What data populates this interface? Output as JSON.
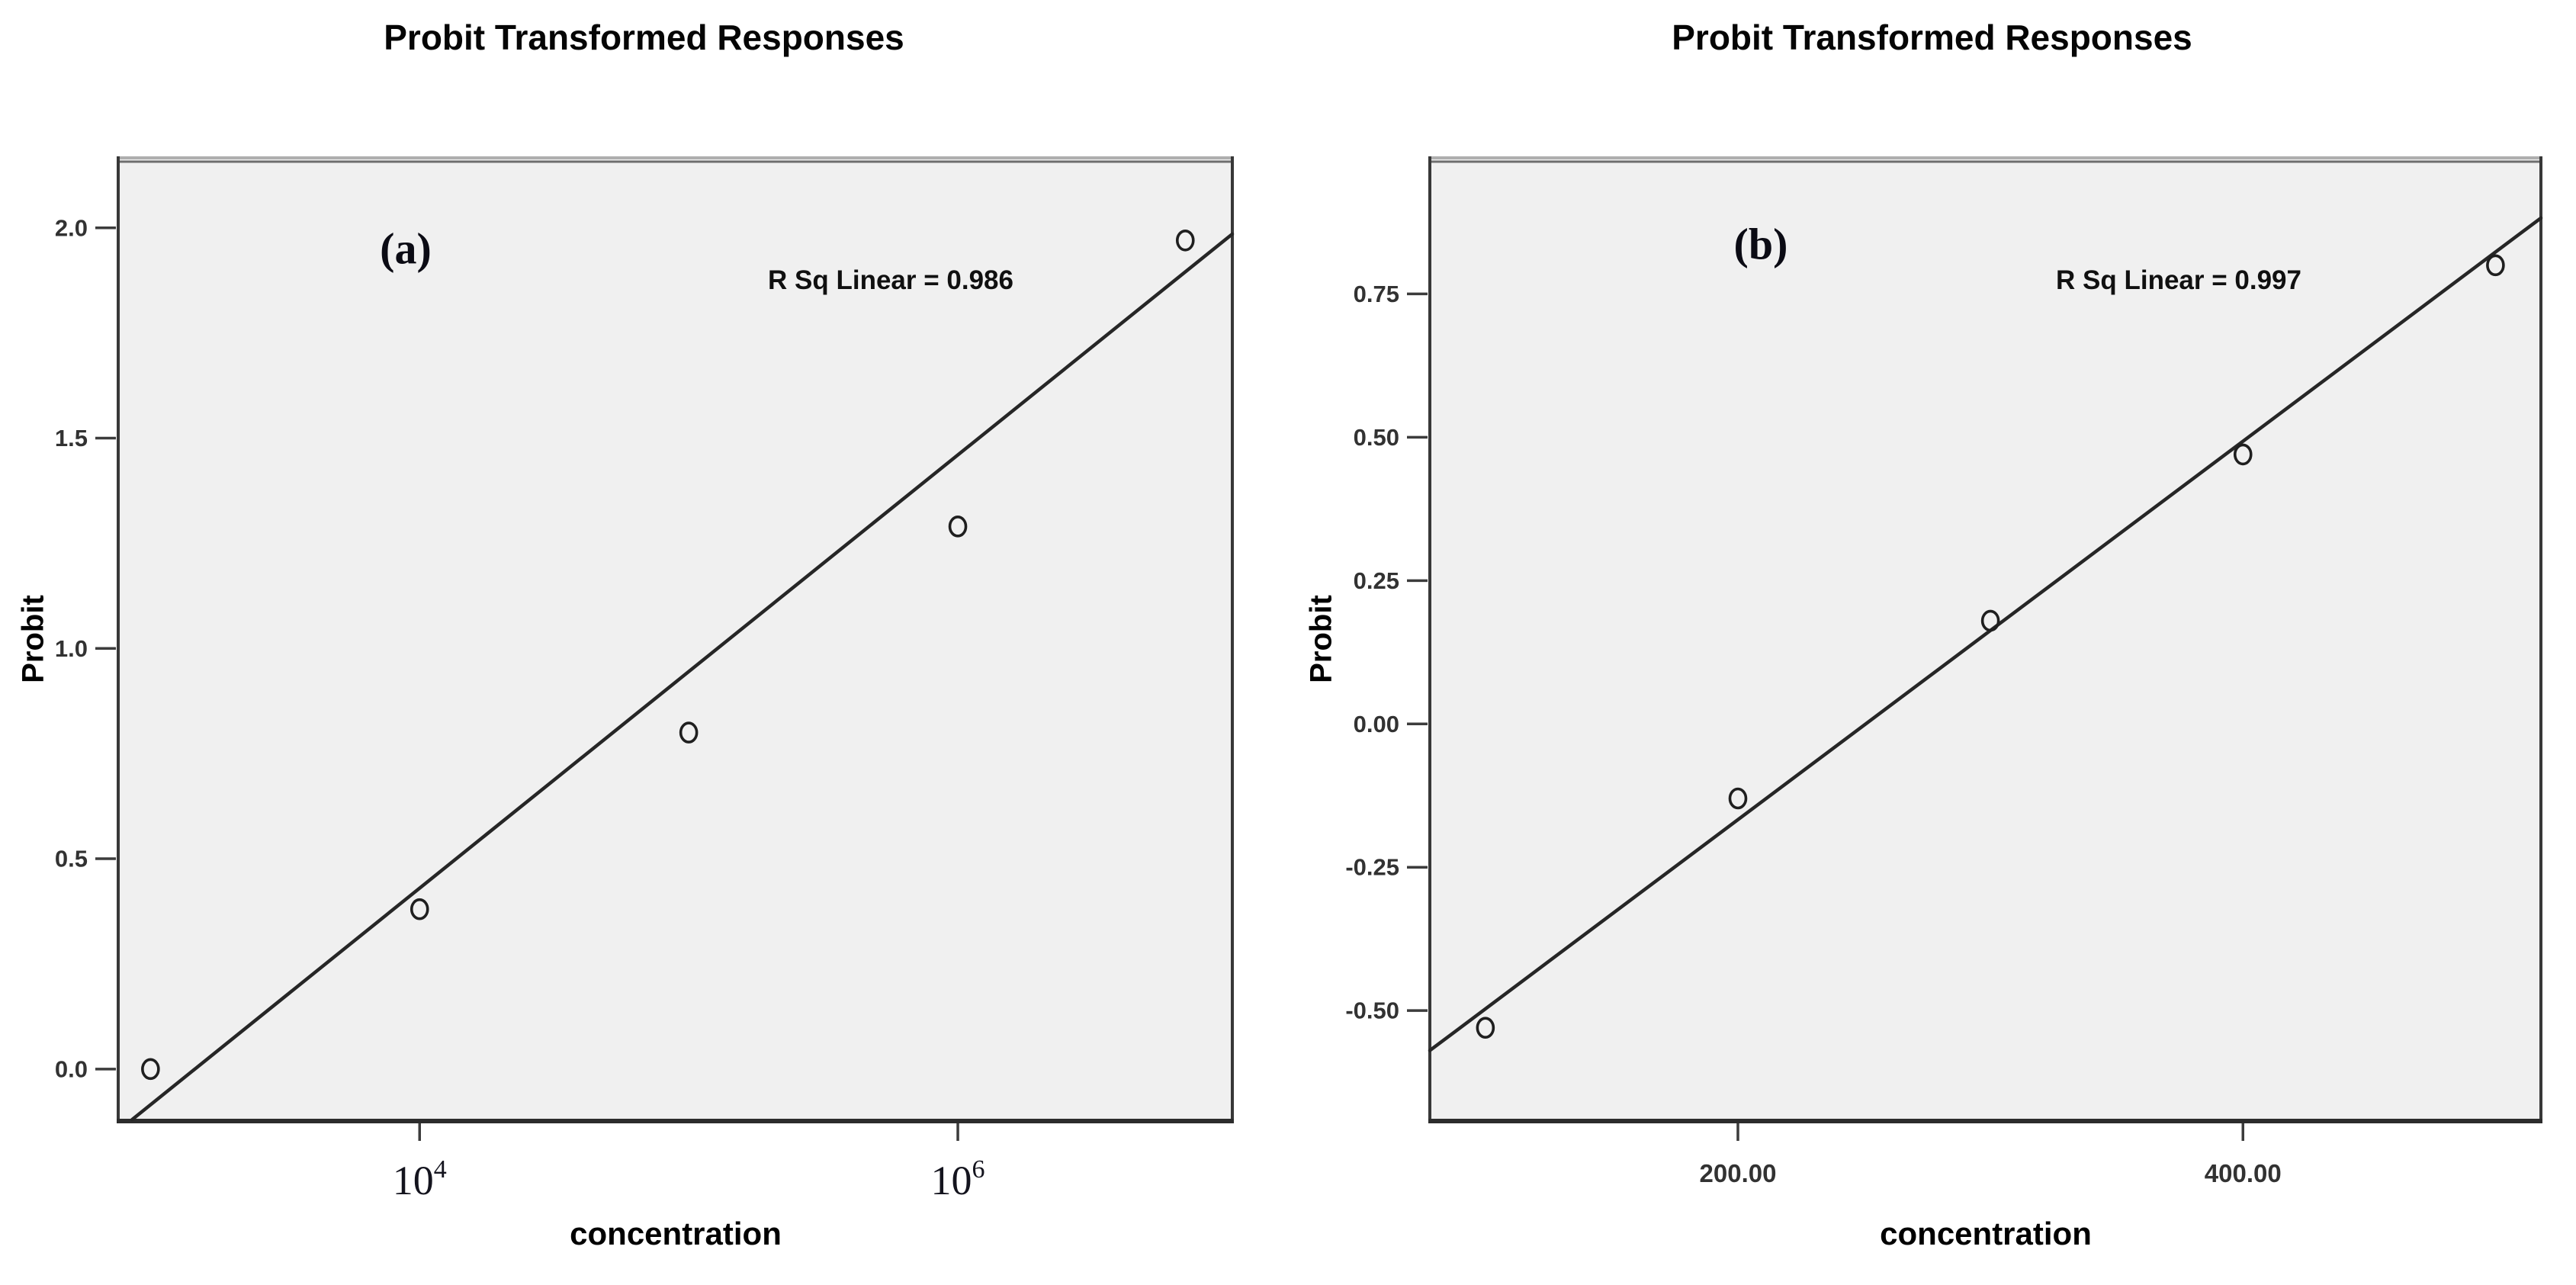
{
  "colors": {
    "page_bg": "#ffffff",
    "plot_bg": "#f0f0f0",
    "frame_dark": "#383838",
    "frame_top_light": "#aeaeae",
    "frame_top_dark": "#6e6e6e",
    "fit_line": "#262626",
    "marker": "#1f1f1f",
    "tick_mark": "#3c3c3c",
    "tick_label": "#323232",
    "log_tick_label": "#14141e",
    "text": "#000000"
  },
  "chart_data": [
    {
      "type": "scatter",
      "panel_label": "(a)",
      "title": "Probit Transformed Responses",
      "xlabel": "concentration",
      "ylabel": "Probit",
      "annotation": "R Sq Linear = 0.986",
      "r_squared": 0.986,
      "x_scale": "log10",
      "points": [
        {
          "x": 1000,
          "y": 0.0
        },
        {
          "x": 10000,
          "y": 0.38
        },
        {
          "x": 100000,
          "y": 0.8
        },
        {
          "x": 1000000,
          "y": 1.29
        },
        {
          "x": 7000000,
          "y": 1.97
        }
      ],
      "fit_line": {
        "slope": 0.515,
        "intercept": -1.63,
        "x_units": "log10(concentration)"
      },
      "x_ticks": [
        {
          "value": 10000,
          "mantissa": "10",
          "exponent": "4"
        },
        {
          "value": 1000000,
          "mantissa": "10",
          "exponent": "6"
        }
      ],
      "y_ticks": [
        {
          "value": 0.0,
          "label": "0.0"
        },
        {
          "value": 0.5,
          "label": "0.5"
        },
        {
          "value": 1.0,
          "label": "1.0"
        },
        {
          "value": 1.5,
          "label": "1.5"
        },
        {
          "value": 2.0,
          "label": "2.0"
        }
      ],
      "xlim_log10": [
        2.88,
        7.02
      ],
      "ylim": [
        -0.12,
        2.17
      ],
      "grid": false,
      "legend": "none",
      "marker_style": "open-circle"
    },
    {
      "type": "scatter",
      "panel_label": "(b)",
      "title": "Probit Transformed Responses",
      "xlabel": "concentration",
      "ylabel": "Probit",
      "annotation": "R Sq Linear = 0.997",
      "r_squared": 0.997,
      "x_scale": "linear",
      "points": [
        {
          "x": 100,
          "y": -0.53
        },
        {
          "x": 200,
          "y": -0.13
        },
        {
          "x": 300,
          "y": 0.18
        },
        {
          "x": 400,
          "y": 0.47
        },
        {
          "x": 500,
          "y": 0.8
        }
      ],
      "fit_line": {
        "slope": 0.0033,
        "intercept": -0.827,
        "x_units": "concentration"
      },
      "x_ticks": [
        {
          "value": 200,
          "label": "200.00"
        },
        {
          "value": 400,
          "label": "400.00"
        }
      ],
      "y_ticks": [
        {
          "value": 0.75,
          "label": "0.75"
        },
        {
          "value": 0.5,
          "label": "0.50"
        },
        {
          "value": 0.25,
          "label": "0.25"
        },
        {
          "value": 0.0,
          "label": "0.00"
        },
        {
          "value": -0.25,
          "label": "-0.25"
        },
        {
          "value": -0.5,
          "label": "-0.50"
        }
      ],
      "xlim": [
        78,
        518
      ],
      "ylim": [
        -0.69,
        0.99
      ],
      "grid": false,
      "legend": "none",
      "marker_style": "open-circle"
    }
  ]
}
